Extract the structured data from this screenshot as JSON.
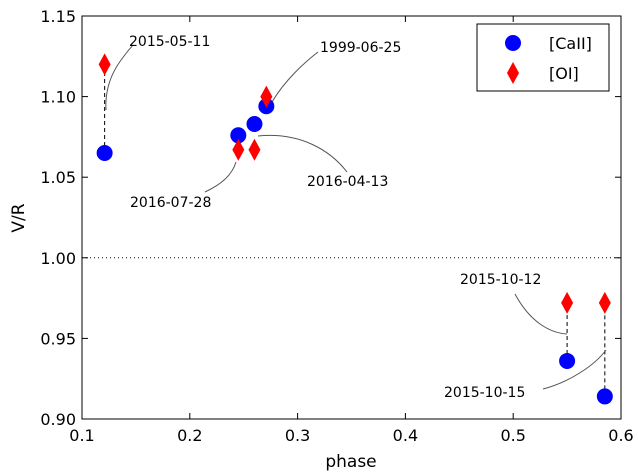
{
  "chart_data": {
    "type": "scatter",
    "xlabel": "phase",
    "ylabel": "V/R",
    "xlim": [
      0.1,
      0.6
    ],
    "ylim": [
      0.9,
      1.15
    ],
    "xticks": [
      0.1,
      0.2,
      0.3,
      0.4,
      0.5,
      0.6
    ],
    "yticks": [
      0.9,
      0.95,
      1.0,
      1.05,
      1.1,
      1.15
    ],
    "xtick_labels": [
      "0.1",
      "0.2",
      "0.3",
      "0.4",
      "0.5",
      "0.6"
    ],
    "ytick_labels": [
      "0.90",
      "0.95",
      "1.00",
      "1.05",
      "1.10",
      "1.15"
    ],
    "reference_line": {
      "y": 1.0,
      "style": "dotted"
    },
    "legend_position": "top-right",
    "series": [
      {
        "name": "[CaII]",
        "marker": "circle",
        "color": "#0000ff",
        "points": [
          {
            "x": 0.121,
            "y": 1.065
          },
          {
            "x": 0.245,
            "y": 1.076
          },
          {
            "x": 0.26,
            "y": 1.083
          },
          {
            "x": 0.271,
            "y": 1.094
          },
          {
            "x": 0.55,
            "y": 0.936
          },
          {
            "x": 0.585,
            "y": 0.914
          }
        ]
      },
      {
        "name": "[OI]",
        "marker": "diamond",
        "color": "#ff0000",
        "points": [
          {
            "x": 0.121,
            "y": 1.12
          },
          {
            "x": 0.245,
            "y": 1.067
          },
          {
            "x": 0.26,
            "y": 1.067
          },
          {
            "x": 0.271,
            "y": 1.1
          },
          {
            "x": 0.55,
            "y": 0.972
          },
          {
            "x": 0.585,
            "y": 0.972
          }
        ]
      }
    ],
    "connectors": [
      {
        "x": 0.121,
        "y1": 1.065,
        "y2": 1.12
      },
      {
        "x": 0.55,
        "y1": 0.936,
        "y2": 0.972
      },
      {
        "x": 0.585,
        "y1": 0.914,
        "y2": 0.972
      }
    ],
    "annotations": [
      {
        "text": "2015-05-11",
        "x": 0.121,
        "y": 1.09
      },
      {
        "text": "1999-06-25",
        "x": 0.271,
        "y": 1.097
      },
      {
        "text": "2016-04-13",
        "x": 0.26,
        "y": 1.075
      },
      {
        "text": "2016-07-28",
        "x": 0.245,
        "y": 1.063
      },
      {
        "text": "2015-10-12",
        "x": 0.55,
        "y": 0.953
      },
      {
        "text": "2015-10-15",
        "x": 0.585,
        "y": 0.943
      }
    ]
  }
}
